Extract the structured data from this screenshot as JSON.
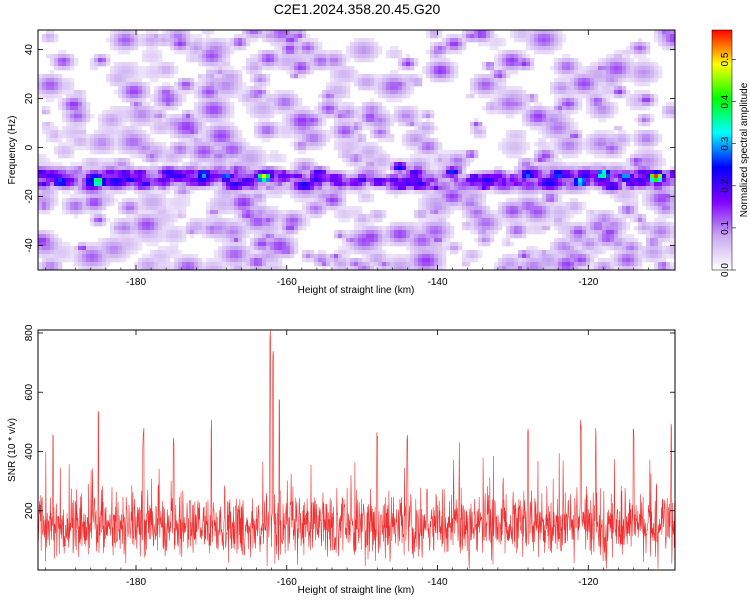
{
  "title": "C2E1.2024.358.20.45.G20",
  "chart_data": [
    {
      "type": "heatmap",
      "xlabel": "Height of straight line (km)",
      "ylabel": "Frequency (Hz)",
      "xlim": [
        -193,
        -108.5
      ],
      "ylim": [
        -50,
        48
      ],
      "xticks": [
        -180,
        -160,
        -140,
        -120
      ],
      "yticks": [
        -40,
        -20,
        0,
        20,
        40
      ],
      "colorbar": {
        "label": "Normalized spectral amplitude",
        "range": [
          0.0,
          0.57
        ],
        "ticks": [
          0.0,
          0.1,
          0.2,
          0.3,
          0.4,
          0.5
        ],
        "colors": [
          "#ffffff",
          "#c8a8f0",
          "#8000ff",
          "#0000ff",
          "#00ffff",
          "#00ff00",
          "#ffff00",
          "#ff0000"
        ]
      },
      "band": {
        "center_frequency_hz": -13,
        "strong_features": [
          {
            "x": -190,
            "y": -14,
            "v": 0.3
          },
          {
            "x": -186,
            "y": -14,
            "v": 0.28
          },
          {
            "x": -185,
            "y": -14,
            "v": 0.44
          },
          {
            "x": -171,
            "y": -11,
            "v": 0.32
          },
          {
            "x": -168,
            "y": -12,
            "v": 0.3
          },
          {
            "x": -163,
            "y": -12,
            "v": 0.5
          },
          {
            "x": -150,
            "y": -13,
            "v": 0.22
          },
          {
            "x": -145,
            "y": -8,
            "v": 0.25
          },
          {
            "x": -138,
            "y": -10,
            "v": 0.26
          },
          {
            "x": -128,
            "y": -11,
            "v": 0.3
          },
          {
            "x": -124,
            "y": -11,
            "v": 0.3
          },
          {
            "x": -121,
            "y": -14,
            "v": 0.36
          },
          {
            "x": -118,
            "y": -11,
            "v": 0.4
          },
          {
            "x": -115,
            "y": -12,
            "v": 0.32
          },
          {
            "x": -111,
            "y": -12,
            "v": 0.57
          }
        ]
      }
    },
    {
      "type": "line",
      "color": "#f03030",
      "xlabel": "Height of straight line (km)",
      "ylabel": "SNR (10 * v/v)",
      "xlim": [
        -193,
        -108.5
      ],
      "ylim": [
        0,
        810
      ],
      "xticks": [
        -180,
        -160,
        -140,
        -120
      ],
      "yticks": [
        200,
        400,
        600,
        800
      ],
      "baseline_mean": 150,
      "noise_amplitude": 120,
      "peaks": [
        {
          "x": -191,
          "y": 470
        },
        {
          "x": -185,
          "y": 550
        },
        {
          "x": -179,
          "y": 490
        },
        {
          "x": -175,
          "y": 460
        },
        {
          "x": -170,
          "y": 510
        },
        {
          "x": -162.2,
          "y": 810
        },
        {
          "x": -161.8,
          "y": 760
        },
        {
          "x": -161,
          "y": 600
        },
        {
          "x": -148,
          "y": 480
        },
        {
          "x": -144,
          "y": 460
        },
        {
          "x": -128,
          "y": 480
        },
        {
          "x": -121,
          "y": 510
        },
        {
          "x": -119,
          "y": 480
        },
        {
          "x": -114,
          "y": 480
        },
        {
          "x": -109,
          "y": 520
        }
      ]
    }
  ]
}
